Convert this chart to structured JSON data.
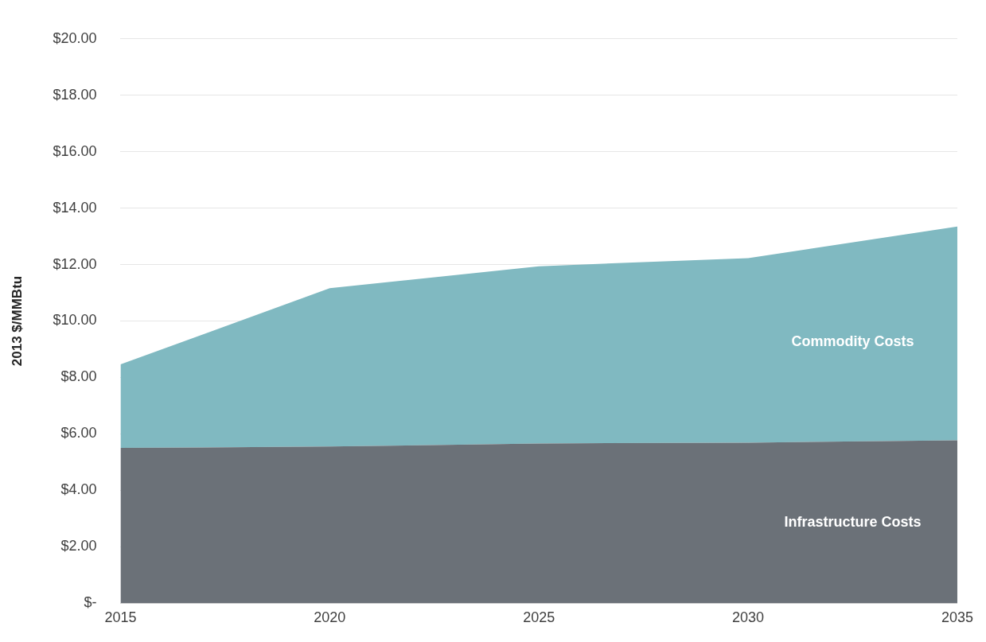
{
  "chart_data": {
    "type": "area",
    "ylabel": "2013 $/MMBtu",
    "categories": [
      "2015",
      "2020",
      "2025",
      "2030",
      "2035"
    ],
    "stacked": true,
    "series": [
      {
        "name": "Infrastructure Costs",
        "color": "#6b7178",
        "values": [
          5.5,
          5.55,
          5.66,
          5.69,
          5.77
        ]
      },
      {
        "name": "Commodity Costs",
        "color": "#80b9c1",
        "values": [
          2.96,
          5.61,
          6.28,
          6.54,
          7.58
        ]
      }
    ],
    "ylim": [
      0,
      20
    ],
    "yticks": [
      {
        "value": 0,
        "label": "$-"
      },
      {
        "value": 2,
        "label": "$2.00"
      },
      {
        "value": 4,
        "label": "$4.00"
      },
      {
        "value": 6,
        "label": "$6.00"
      },
      {
        "value": 8,
        "label": "$8.00"
      },
      {
        "value": 10,
        "label": "$10.00"
      },
      {
        "value": 12,
        "label": "$12.00"
      },
      {
        "value": 14,
        "label": "$14.00"
      },
      {
        "value": 16,
        "label": "$16.00"
      },
      {
        "value": 18,
        "label": "$18.00"
      },
      {
        "value": 20,
        "label": "$20.00"
      }
    ],
    "grid": "y",
    "legend": false
  }
}
